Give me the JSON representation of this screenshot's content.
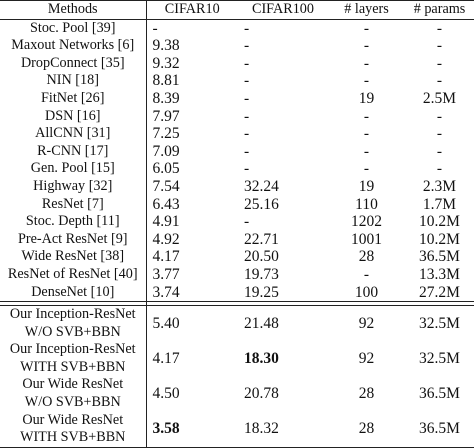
{
  "table": {
    "headers": [
      "Methods",
      "CIFAR10",
      "CIFAR100",
      "# layers",
      "# params"
    ],
    "baseline_rows": [
      {
        "method": "Stoc. Pool [39]",
        "cifar10": "-",
        "cifar100": "-",
        "layers": "-",
        "params": "-"
      },
      {
        "method": "Maxout Networks [6]",
        "cifar10": "9.38",
        "cifar100": "-",
        "layers": "-",
        "params": "-"
      },
      {
        "method": "DropConnect [35]",
        "cifar10": "9.32",
        "cifar100": "-",
        "layers": "-",
        "params": "-"
      },
      {
        "method": "NIN [18]",
        "cifar10": "8.81",
        "cifar100": "-",
        "layers": "-",
        "params": "-"
      },
      {
        "method": "FitNet [26]",
        "cifar10": "8.39",
        "cifar100": "-",
        "layers": "19",
        "params": "2.5M"
      },
      {
        "method": "DSN [16]",
        "cifar10": "7.97",
        "cifar100": "-",
        "layers": "-",
        "params": "-"
      },
      {
        "method": "AllCNN [31]",
        "cifar10": "7.25",
        "cifar100": "-",
        "layers": "-",
        "params": "-"
      },
      {
        "method": "R-CNN [17]",
        "cifar10": "7.09",
        "cifar100": "-",
        "layers": "-",
        "params": "-"
      },
      {
        "method": "Gen. Pool [15]",
        "cifar10": "6.05",
        "cifar100": "-",
        "layers": "-",
        "params": "-"
      },
      {
        "method": "Highway [32]",
        "cifar10": "7.54",
        "cifar100": "32.24",
        "layers": "19",
        "params": "2.3M"
      },
      {
        "method": "ResNet [7]",
        "cifar10": "6.43",
        "cifar100": "25.16",
        "layers": "110",
        "params": "1.7M"
      },
      {
        "method": "Stoc. Depth [11]",
        "cifar10": "4.91",
        "cifar100": "-",
        "layers": "1202",
        "params": "10.2M"
      },
      {
        "method": "Pre-Act ResNet [9]",
        "cifar10": "4.92",
        "cifar100": "22.71",
        "layers": "1001",
        "params": "10.2M"
      },
      {
        "method": "Wide ResNet [38]",
        "cifar10": "4.17",
        "cifar100": "20.50",
        "layers": "28",
        "params": "36.5M"
      },
      {
        "method": "ResNet of ResNet [40]",
        "cifar10": "3.77",
        "cifar100": "19.73",
        "layers": "-",
        "params": "13.3M"
      },
      {
        "method": "DenseNet [10]",
        "cifar10": "3.74",
        "cifar100": "19.25",
        "layers": "100",
        "params": "27.2M"
      }
    ],
    "our_rows": [
      {
        "method_line1": "Our Inception-ResNet",
        "method_line2": "W/O SVB+BBN",
        "cifar10": "5.40",
        "cifar100": "21.48",
        "layers": "92",
        "params": "32.5M",
        "bold_cifar10": false,
        "bold_cifar100": false
      },
      {
        "method_line1": "Our Inception-ResNet",
        "method_line2": "WITH SVB+BBN",
        "cifar10": "4.17",
        "cifar100": "18.30",
        "layers": "92",
        "params": "32.5M",
        "bold_cifar10": false,
        "bold_cifar100": true
      },
      {
        "method_line1": "Our Wide ResNet",
        "method_line2": "W/O SVB+BBN",
        "cifar10": "4.50",
        "cifar100": "20.78",
        "layers": "28",
        "params": "36.5M",
        "bold_cifar10": false,
        "bold_cifar100": false
      },
      {
        "method_line1": "Our Wide ResNet",
        "method_line2": "WITH SVB+BBN",
        "cifar10": "3.58",
        "cifar100": "18.32",
        "layers": "28",
        "params": "36.5M",
        "bold_cifar10": true,
        "bold_cifar100": false
      }
    ]
  }
}
